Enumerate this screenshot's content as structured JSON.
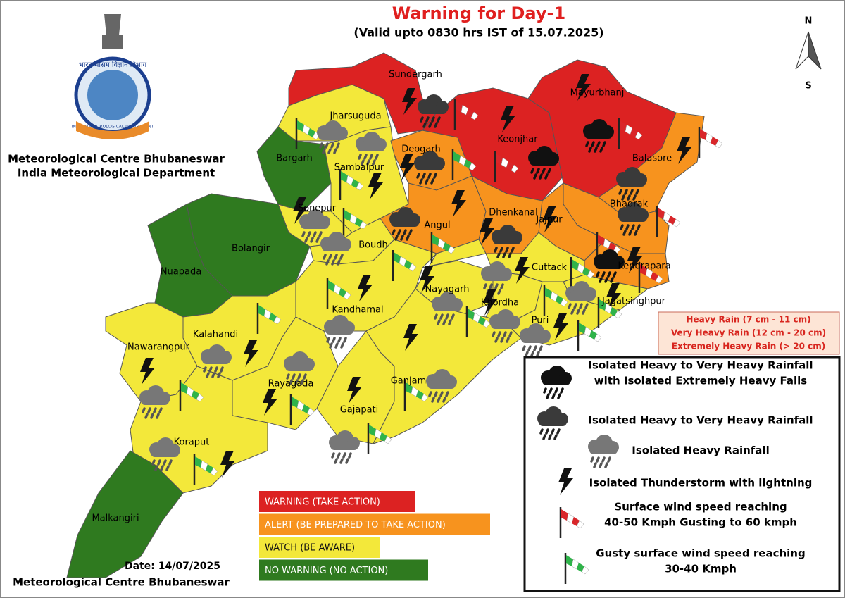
{
  "header": {
    "title": "Warning for Day-1",
    "subtitle": "(Valid upto 0830 hrs IST of 15.07.2025)"
  },
  "compass": {
    "north": "N",
    "south": "S"
  },
  "logo": {
    "hindi": "भारत मौसम विज्ञान विभाग",
    "english": "INDIA METEOROLOGICAL DEPARTMENT"
  },
  "organisation": {
    "line1": "Meteorological Centre Bhubaneswar",
    "line2": "India Meteorological Department"
  },
  "districts": [
    {
      "name": "Sundergarh",
      "color": "#dc2222"
    },
    {
      "name": "Jharsuguda",
      "color": "#f3e83a"
    },
    {
      "name": "Bargarh",
      "color": "#2f7a1f"
    },
    {
      "name": "Sambalpur",
      "color": "#f3e83a"
    },
    {
      "name": "Deogarh",
      "color": "#f7931e"
    },
    {
      "name": "Keonjhar",
      "color": "#dc2222"
    },
    {
      "name": "Mayurbhanj",
      "color": "#dc2222"
    },
    {
      "name": "Balasore",
      "color": "#f7931e"
    },
    {
      "name": "Bhadrak",
      "color": "#f7931e"
    },
    {
      "name": "Sonepur",
      "color": "#f3e83a"
    },
    {
      "name": "Bolangir",
      "color": "#2f7a1f"
    },
    {
      "name": "Nuapada",
      "color": "#2f7a1f"
    },
    {
      "name": "Boudh",
      "color": "#f3e83a"
    },
    {
      "name": "Angul",
      "color": "#f7931e"
    },
    {
      "name": "Dhenkanal",
      "color": "#f7931e"
    },
    {
      "name": "Jajpur",
      "color": "#f7931e"
    },
    {
      "name": "Kendrapara",
      "color": "#f7931e"
    },
    {
      "name": "Cuttack",
      "color": "#f3e83a"
    },
    {
      "name": "Jagatsinghpur",
      "color": "#f3e83a"
    },
    {
      "name": "Nayagarh",
      "color": "#f3e83a"
    },
    {
      "name": "Khordha",
      "color": "#f3e83a"
    },
    {
      "name": "Puri",
      "color": "#f3e83a"
    },
    {
      "name": "Kandhamal",
      "color": "#f3e83a"
    },
    {
      "name": "Kalahandi",
      "color": "#f3e83a"
    },
    {
      "name": "Nawarangpur",
      "color": "#f3e83a"
    },
    {
      "name": "Rayagada",
      "color": "#f3e83a"
    },
    {
      "name": "Gajapati",
      "color": "#f3e83a"
    },
    {
      "name": "Ganjam",
      "color": "#f3e83a"
    },
    {
      "name": "Koraput",
      "color": "#f3e83a"
    },
    {
      "name": "Malkangiri",
      "color": "#2f7a1f"
    }
  ],
  "rainfall_scale": [
    "Heavy Rain (7 cm - 11 cm)",
    "Very Heavy Rain (12 cm - 20 cm)",
    "Extremely Heavy Rain (> 20 cm)"
  ],
  "warning_levels": [
    {
      "label": "WARNING (TAKE ACTION)",
      "color": "#dc2222"
    },
    {
      "label": "ALERT (BE PREPARED TO TAKE ACTION)",
      "color": "#f7931e"
    },
    {
      "label": "WATCH (BE AWARE)",
      "color": "#f3e83a"
    },
    {
      "label": "NO WARNING (NO ACTION)",
      "color": "#2f7a1f"
    }
  ],
  "icon_legend": [
    {
      "lines": [
        "Isolated Heavy to Very Heavy Rainfall",
        "with Isolated Extremely Heavy Falls"
      ]
    },
    {
      "lines": [
        "Isolated Heavy to Very Heavy Rainfall"
      ]
    },
    {
      "lines": [
        "Isolated Heavy Rainfall"
      ]
    },
    {
      "lines": [
        "Isolated Thunderstorm with lightning"
      ]
    },
    {
      "lines": [
        "Surface wind speed reaching",
        "40-50 Kmph Gusting to 60 kmph"
      ]
    },
    {
      "lines": [
        "Gusty surface wind speed reaching",
        "30-40 Kmph"
      ]
    }
  ],
  "footer": {
    "date": "Date: 14/07/2025",
    "org": "Meteorological Centre Bhubaneswar"
  }
}
